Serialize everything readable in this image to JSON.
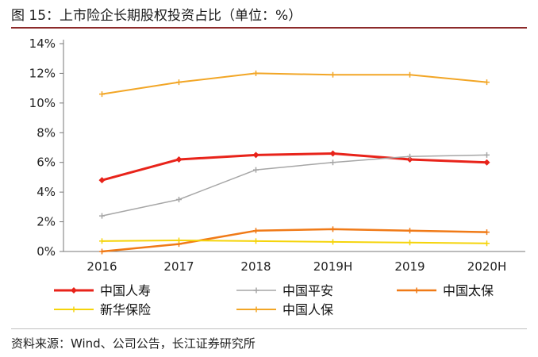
{
  "figure": {
    "title": "图 15：上市险企长期股权投资占比（单位：%）",
    "source": "资料来源：Wind、公司公告，长江证券研究所"
  },
  "chart_data": {
    "type": "line",
    "title": "上市险企长期股权投资占比（单位：%）",
    "xlabel": "",
    "ylabel": "",
    "categories": [
      "2016",
      "2017",
      "2018",
      "2019H",
      "2019",
      "2020H"
    ],
    "ylim": [
      0,
      14
    ],
    "yticks": [
      0,
      2,
      4,
      6,
      8,
      10,
      12,
      14
    ],
    "ytick_labels": [
      "0%",
      "2%",
      "4%",
      "6%",
      "8%",
      "10%",
      "12%",
      "14%"
    ],
    "grid": false,
    "legend_placement": "bottom",
    "series": [
      {
        "name": "中国人寿",
        "color": "#e8231a",
        "values": [
          4.8,
          6.2,
          6.5,
          6.6,
          6.2,
          6.0
        ],
        "width": 3
      },
      {
        "name": "中国平安",
        "color": "#a6a6a6",
        "values": [
          2.4,
          3.5,
          5.5,
          6.0,
          6.4,
          6.5
        ],
        "width": 1.5
      },
      {
        "name": "中国太保",
        "color": "#f07a17",
        "values": [
          0.0,
          0.5,
          1.4,
          1.5,
          1.4,
          1.3
        ],
        "width": 2.5
      },
      {
        "name": "新华保险",
        "color": "#f5d40b",
        "values": [
          0.7,
          0.75,
          0.7,
          0.65,
          0.6,
          0.55
        ],
        "width": 2
      },
      {
        "name": "中国人保",
        "color": "#f2a626",
        "values": [
          10.6,
          11.4,
          12.0,
          11.9,
          11.9,
          11.4
        ],
        "width": 2
      }
    ]
  }
}
